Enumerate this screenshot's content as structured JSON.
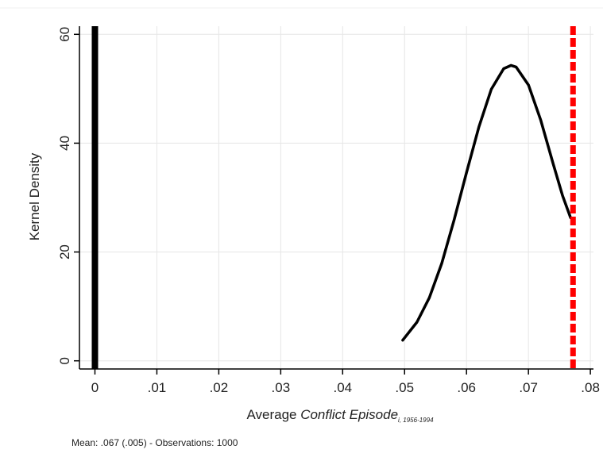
{
  "chart_data": {
    "type": "line",
    "xlabel": {
      "prefix": "Average ",
      "italic": "Conflict Episode",
      "subscript": "i, 1956-1994"
    },
    "ylabel": "Kernel Density",
    "xlim": [
      -0.0025,
      0.0805
    ],
    "ylim": [
      -1.5,
      61.5
    ],
    "x_ticks": [
      0,
      0.01,
      0.02,
      0.03,
      0.04,
      0.05,
      0.06,
      0.07,
      0.08
    ],
    "x_tick_labels": [
      "0",
      ".01",
      ".02",
      ".03",
      ".04",
      ".05",
      ".06",
      ".07",
      ".08"
    ],
    "y_ticks": [
      0,
      20,
      40,
      60
    ],
    "y_tick_labels": [
      "0",
      "20",
      "40",
      "60"
    ],
    "grid": true,
    "series": [
      {
        "style": "solid",
        "color": "#000000",
        "x": [
          0.0497,
          0.052,
          0.054,
          0.056,
          0.058,
          0.06,
          0.062,
          0.064,
          0.066,
          0.0672,
          0.068,
          0.07,
          0.072,
          0.074,
          0.0755,
          0.0768
        ],
        "y": [
          3.8,
          7.1,
          11.6,
          17.9,
          25.9,
          34.6,
          43.0,
          49.9,
          53.7,
          54.3,
          54.0,
          50.7,
          44.2,
          36.2,
          30.4,
          26.3
        ]
      }
    ],
    "reference_lines": [
      {
        "x": 0.0,
        "style": "solid",
        "color": "#000000",
        "width": "thick"
      },
      {
        "x": 0.0772,
        "style": "dashed",
        "color": "#ff0000",
        "width": "thick"
      }
    ],
    "note": "Mean:  .067 (.005)  -  Observations: 1000"
  }
}
